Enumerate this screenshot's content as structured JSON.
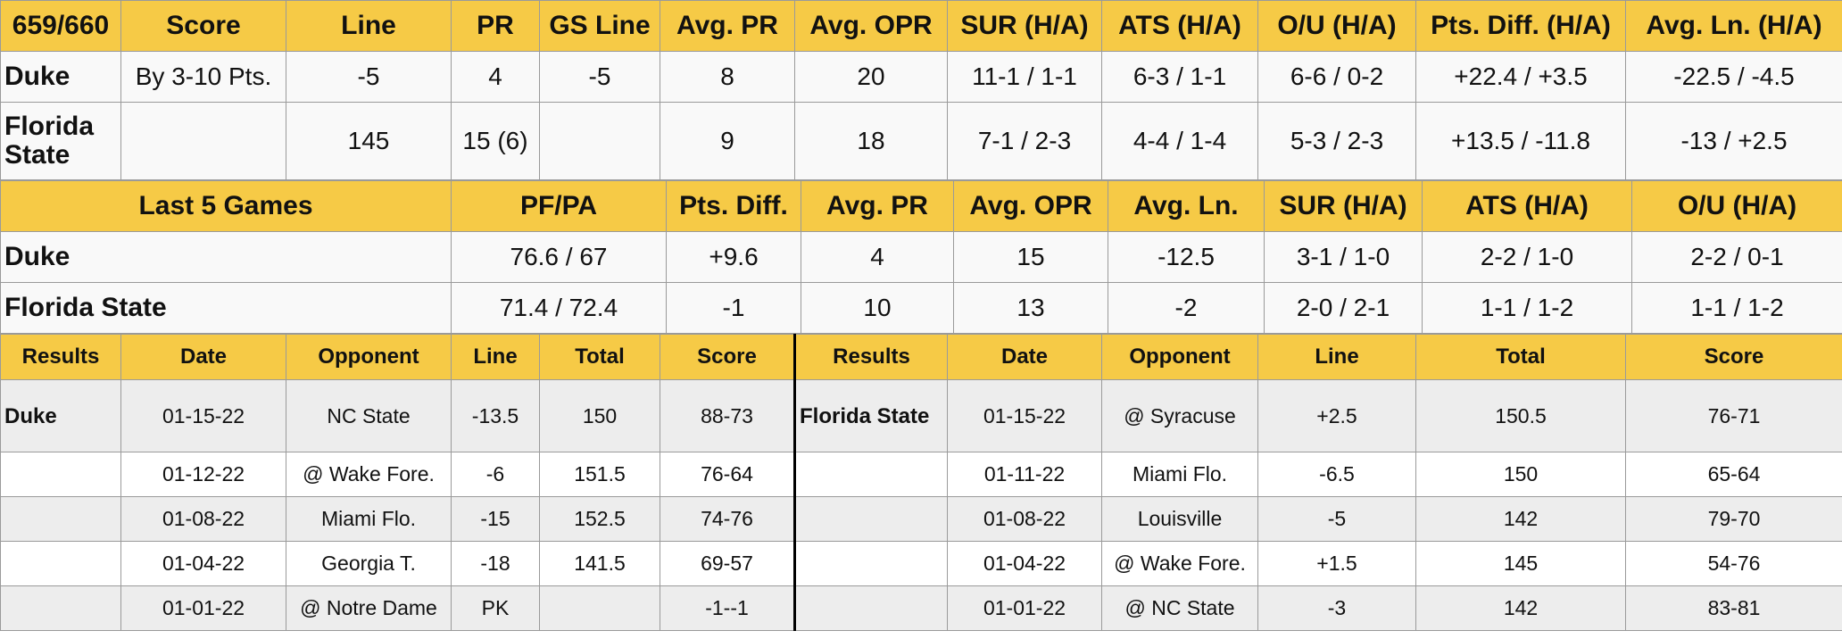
{
  "matchup": {
    "headers": [
      "659/660",
      "Score",
      "Line",
      "PR",
      "GS Line",
      "Avg. PR",
      "Avg. OPR",
      "SUR (H/A)",
      "ATS (H/A)",
      "O/U (H/A)",
      "Pts. Diff. (H/A)",
      "Avg. Ln. (H/A)"
    ],
    "rows": [
      [
        "Duke",
        "By 3-10 Pts.",
        "-5",
        "4",
        "-5",
        "8",
        "20",
        "11-1 / 1-1",
        "6-3 / 1-1",
        "6-6 / 0-2",
        "+22.4 / +3.5",
        "-22.5 / -4.5"
      ],
      [
        "Florida State",
        "",
        "145",
        "15 (6)",
        "",
        "9",
        "18",
        "7-1 / 2-3",
        "4-4 / 1-4",
        "5-3 / 2-3",
        "+13.5 / -11.8",
        "-13 / +2.5"
      ]
    ]
  },
  "last5": {
    "headers": [
      "Last 5 Games",
      "PF/PA",
      "Pts. Diff.",
      "Avg. PR",
      "Avg. OPR",
      "Avg. Ln.",
      "SUR (H/A)",
      "ATS (H/A)",
      "O/U (H/A)"
    ],
    "rows": [
      [
        "Duke",
        "76.6 / 67",
        "+9.6",
        "4",
        "15",
        "-12.5",
        "3-1 / 1-0",
        "2-2 / 1-0",
        "2-2 / 0-1"
      ],
      [
        "Florida State",
        "71.4 / 72.4",
        "-1",
        "10",
        "13",
        "-2",
        "2-0 / 2-1",
        "1-1 / 1-2",
        "1-1 / 1-2"
      ]
    ]
  },
  "results": {
    "headers": [
      "Results",
      "Date",
      "Opponent",
      "Line",
      "Total",
      "Score",
      "Results",
      "Date",
      "Opponent",
      "Line",
      "Total",
      "Score"
    ],
    "left_team": "Duke",
    "right_team": "Florida State",
    "left": [
      [
        "01-15-22",
        "NC State",
        "-13.5",
        "150",
        "88-73"
      ],
      [
        "01-12-22",
        "@ Wake Fore.",
        "-6",
        "151.5",
        "76-64"
      ],
      [
        "01-08-22",
        "Miami Flo.",
        "-15",
        "152.5",
        "74-76"
      ],
      [
        "01-04-22",
        "Georgia T.",
        "-18",
        "141.5",
        "69-57"
      ],
      [
        "01-01-22",
        "@ Notre Dame",
        "PK",
        "",
        "-1--1"
      ]
    ],
    "right": [
      [
        "01-15-22",
        "@ Syracuse",
        "+2.5",
        "150.5",
        "76-71"
      ],
      [
        "01-11-22",
        "Miami Flo.",
        "-6.5",
        "150",
        "65-64"
      ],
      [
        "01-08-22",
        "Louisville",
        "-5",
        "142",
        "79-70"
      ],
      [
        "01-04-22",
        "@ Wake Fore.",
        "+1.5",
        "145",
        "54-76"
      ],
      [
        "01-01-22",
        "@ NC State",
        "-3",
        "142",
        "83-81"
      ]
    ]
  }
}
